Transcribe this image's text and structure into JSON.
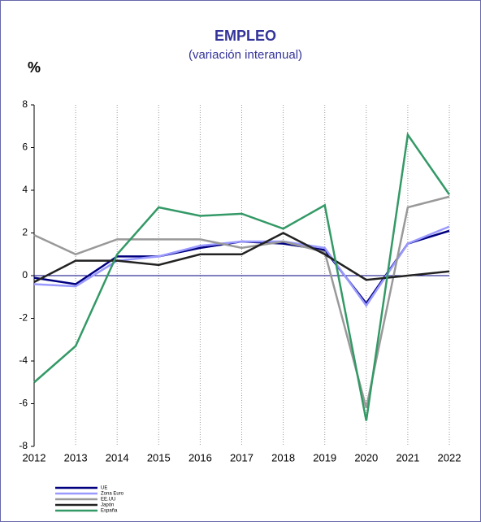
{
  "chart_data": {
    "type": "line",
    "title": "EMPLEO",
    "subtitle": "(variación interanual)",
    "y_label": "%",
    "categories": [
      "2012",
      "2013",
      "2014",
      "2015",
      "2016",
      "2017",
      "2018",
      "2019",
      "2020",
      "2021",
      "2022"
    ],
    "series": [
      {
        "name": "UE",
        "color": "#000080",
        "values": [
          -0.1,
          -0.4,
          0.9,
          0.9,
          1.3,
          1.6,
          1.5,
          1.2,
          -1.3,
          1.5,
          2.1
        ]
      },
      {
        "name": "Zona Euro",
        "color": "#9999ff",
        "values": [
          -0.4,
          -0.5,
          0.7,
          0.9,
          1.4,
          1.6,
          1.6,
          1.3,
          -1.4,
          1.5,
          2.3
        ]
      },
      {
        "name": "EE.UU",
        "color": "#999999",
        "values": [
          1.9,
          1.0,
          1.7,
          1.7,
          1.7,
          1.3,
          1.6,
          1.1,
          -6.2,
          3.2,
          3.7
        ]
      },
      {
        "name": "Japón",
        "color": "#222222",
        "values": [
          -0.3,
          0.7,
          0.7,
          0.5,
          1.0,
          1.0,
          2.0,
          1.0,
          -0.2,
          0.0,
          0.2
        ]
      },
      {
        "name": "España",
        "color": "#339966",
        "values": [
          -5.0,
          -3.3,
          1.0,
          3.2,
          2.8,
          2.9,
          2.2,
          3.3,
          -6.8,
          6.6,
          3.8
        ]
      }
    ],
    "ylim": [
      -8,
      8
    ],
    "yticks": [
      -8,
      -6,
      -4,
      -2,
      0,
      2,
      4,
      6,
      8
    ],
    "grid": true
  }
}
